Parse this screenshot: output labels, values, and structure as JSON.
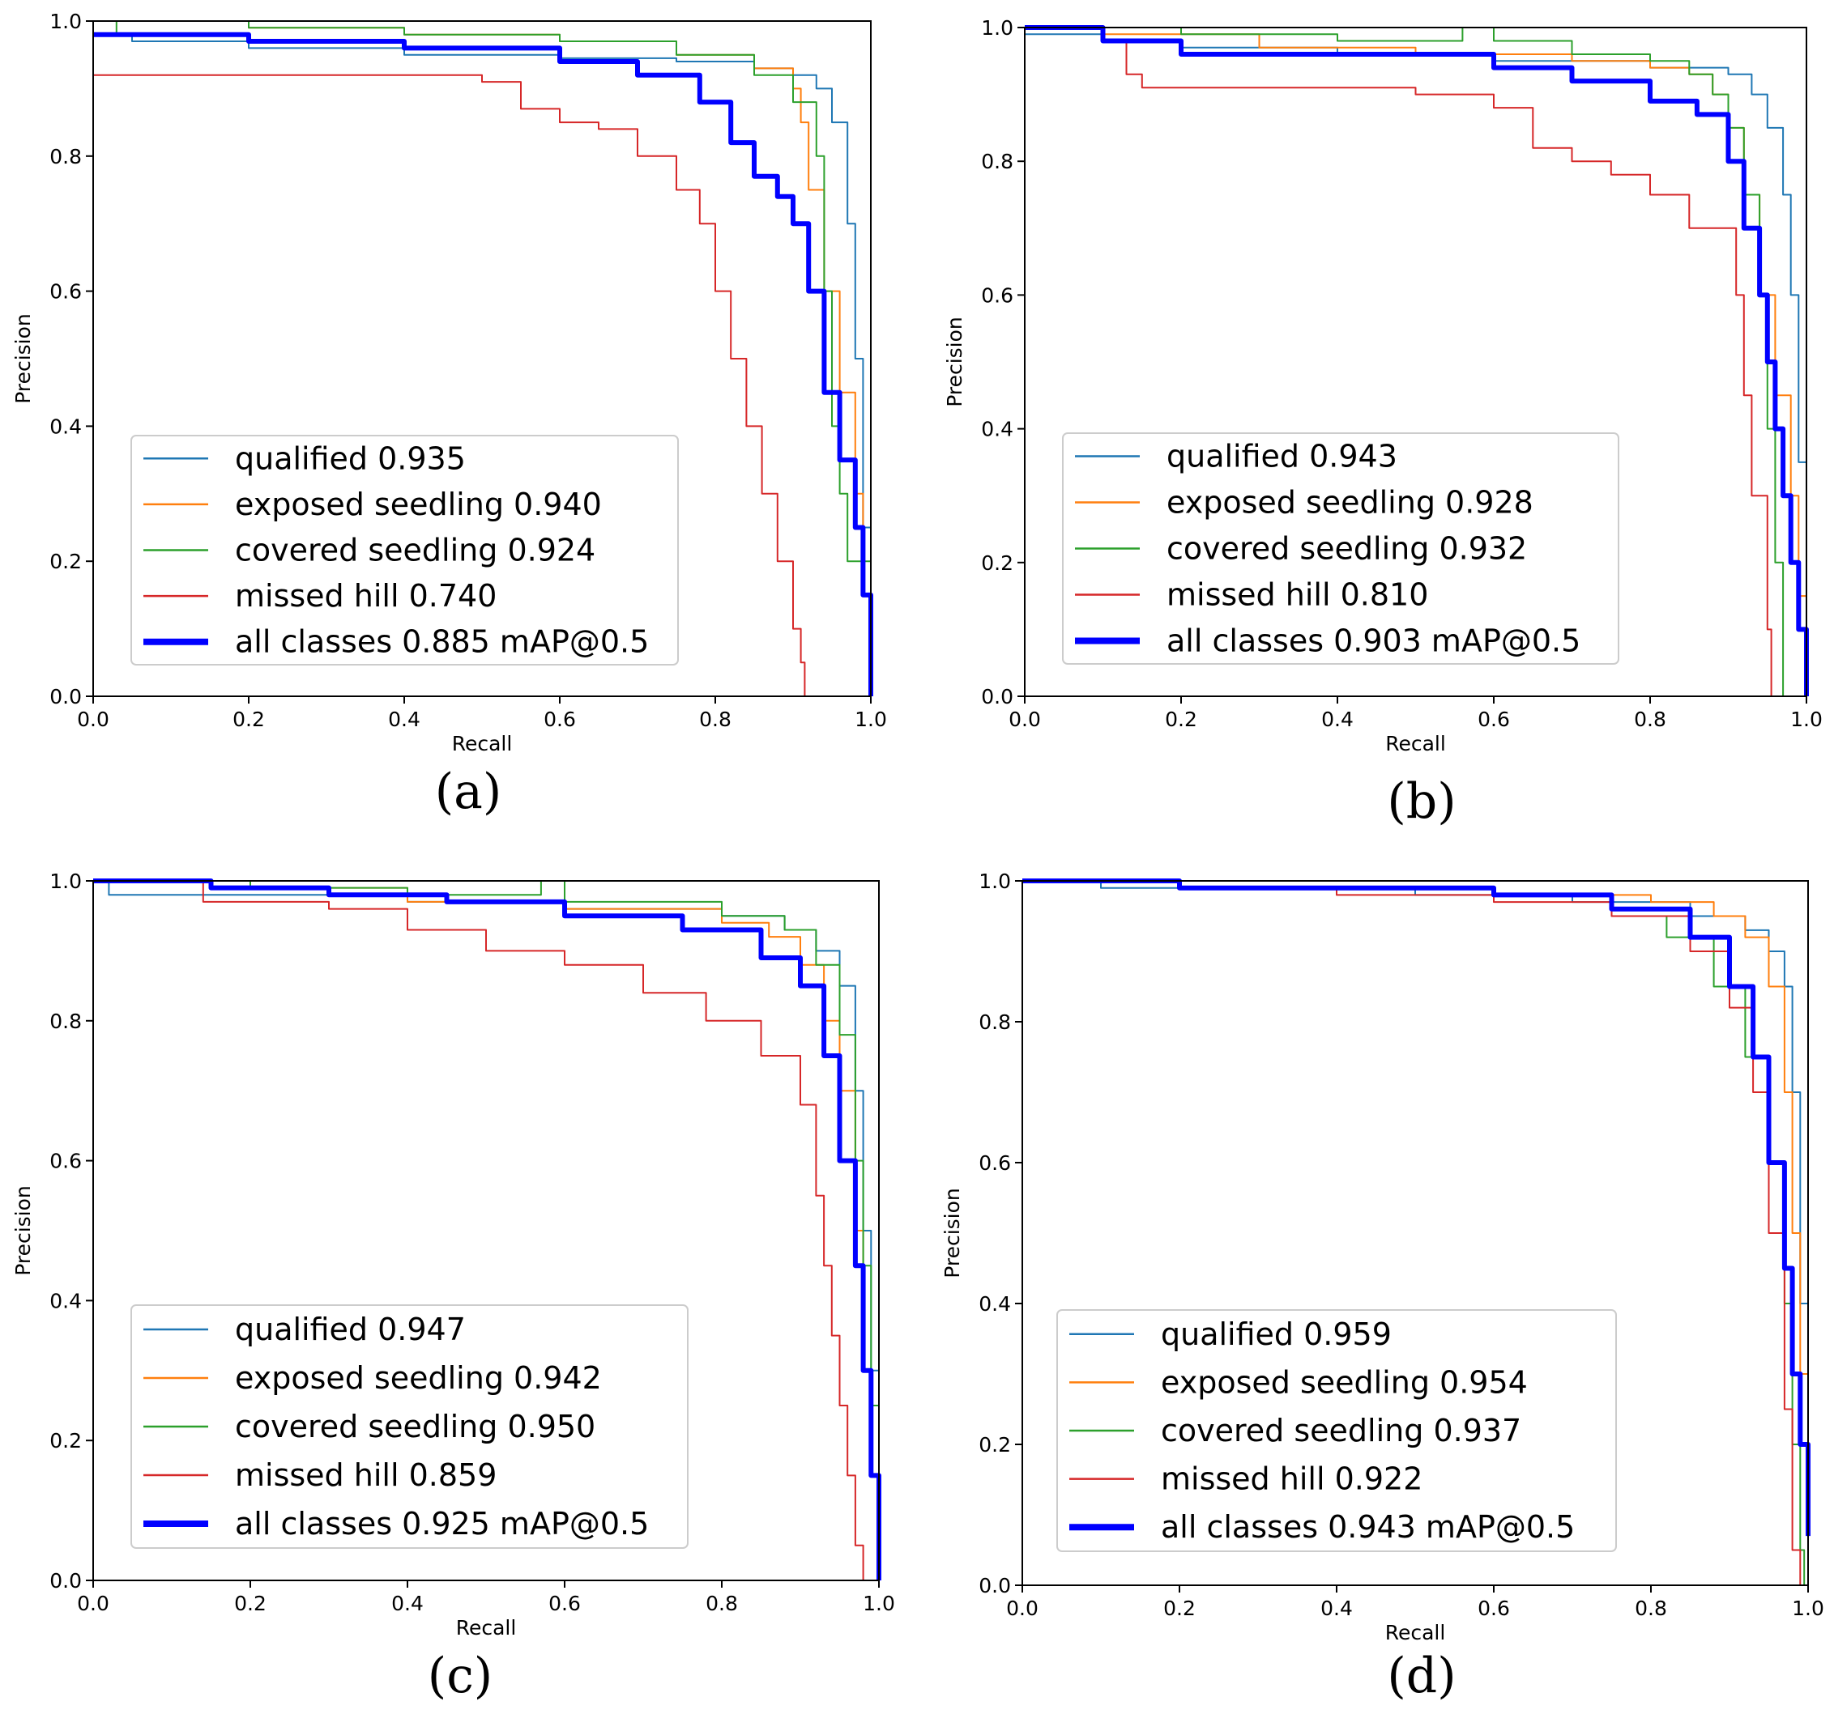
{
  "figure": {
    "colors": {
      "qualified": "#1f77b4",
      "exposed seedling": "#ff7f0e",
      "covered seedling": "#2ca02c",
      "missed hill": "#d62728",
      "all classes": "#0000ff"
    }
  },
  "chart_data": [
    {
      "panel": "(a)",
      "type": "line",
      "xlabel": "Recall",
      "ylabel": "Precision",
      "xlim": [
        0,
        1
      ],
      "ylim": [
        0,
        1
      ],
      "xticks": [
        "0.0",
        "0.2",
        "0.4",
        "0.6",
        "0.8",
        "1.0"
      ],
      "yticks": [
        "0.0",
        "0.2",
        "0.4",
        "0.6",
        "0.8",
        "1.0"
      ],
      "legend_position": "lower-center",
      "series": [
        {
          "name": "qualified",
          "label": "qualified 0.935",
          "x": [
            0,
            0.05,
            0.2,
            0.4,
            0.6,
            0.75,
            0.85,
            0.9,
            0.93,
            0.95,
            0.97,
            0.98,
            0.99,
            1.0
          ],
          "y": [
            0.98,
            0.97,
            0.96,
            0.95,
            0.945,
            0.94,
            0.93,
            0.92,
            0.9,
            0.85,
            0.7,
            0.5,
            0.25,
            0.0
          ]
        },
        {
          "name": "exposed seedling",
          "label": "exposed seedling 0.940",
          "x": [
            0,
            0.05,
            0.2,
            0.4,
            0.6,
            0.75,
            0.85,
            0.9,
            0.91,
            0.92,
            0.94,
            0.96,
            0.98,
            0.99,
            1.0
          ],
          "y": [
            1.0,
            1.0,
            0.99,
            0.98,
            0.97,
            0.95,
            0.93,
            0.9,
            0.85,
            0.75,
            0.6,
            0.45,
            0.3,
            0.15,
            0.0
          ]
        },
        {
          "name": "covered seedling",
          "label": "covered seedling 0.924",
          "x": [
            0,
            0.03,
            0.2,
            0.4,
            0.6,
            0.75,
            0.85,
            0.9,
            0.93,
            0.94,
            0.95,
            0.96,
            0.97,
            0.98,
            1.0
          ],
          "y": [
            0.98,
            1.0,
            0.99,
            0.98,
            0.97,
            0.95,
            0.92,
            0.88,
            0.8,
            0.6,
            0.4,
            0.3,
            0.2,
            0.2,
            0.0
          ]
        },
        {
          "name": "missed hill",
          "label": "missed hill 0.740",
          "x": [
            0,
            0.1,
            0.3,
            0.5,
            0.55,
            0.6,
            0.65,
            0.7,
            0.75,
            0.78,
            0.8,
            0.82,
            0.84,
            0.86,
            0.88,
            0.9,
            0.91,
            0.915
          ],
          "y": [
            0.92,
            0.92,
            0.92,
            0.91,
            0.87,
            0.85,
            0.84,
            0.8,
            0.75,
            0.7,
            0.6,
            0.5,
            0.4,
            0.3,
            0.2,
            0.1,
            0.05,
            0.0
          ]
        },
        {
          "name": "all classes",
          "label": "all classes 0.885 mAP@0.5",
          "x": [
            0,
            0.2,
            0.4,
            0.6,
            0.7,
            0.78,
            0.82,
            0.85,
            0.88,
            0.9,
            0.92,
            0.94,
            0.96,
            0.98,
            0.99,
            1.0
          ],
          "y": [
            0.98,
            0.97,
            0.96,
            0.94,
            0.92,
            0.88,
            0.82,
            0.77,
            0.74,
            0.7,
            0.6,
            0.45,
            0.35,
            0.25,
            0.15,
            0.0
          ]
        }
      ]
    },
    {
      "panel": "(b)",
      "type": "line",
      "xlabel": "Recall",
      "ylabel": "Precision",
      "xlim": [
        0,
        1
      ],
      "ylim": [
        0,
        1
      ],
      "xticks": [
        "0.0",
        "0.2",
        "0.4",
        "0.6",
        "0.8",
        "1.0"
      ],
      "yticks": [
        "0.0",
        "0.2",
        "0.4",
        "0.6",
        "0.8",
        "1.0"
      ],
      "legend_position": "lower-center",
      "series": [
        {
          "name": "qualified",
          "label": "qualified 0.943",
          "x": [
            0,
            0.1,
            0.2,
            0.4,
            0.6,
            0.8,
            0.9,
            0.93,
            0.95,
            0.97,
            0.98,
            0.99,
            1.0
          ],
          "y": [
            0.99,
            0.98,
            0.97,
            0.96,
            0.95,
            0.94,
            0.93,
            0.9,
            0.85,
            0.75,
            0.6,
            0.35,
            0.0
          ]
        },
        {
          "name": "exposed seedling",
          "label": "exposed seedling 0.928",
          "x": [
            0,
            0.1,
            0.3,
            0.5,
            0.7,
            0.8,
            0.85,
            0.88,
            0.9,
            0.92,
            0.94,
            0.96,
            0.98,
            0.99,
            1.0
          ],
          "y": [
            1.0,
            0.99,
            0.97,
            0.96,
            0.95,
            0.94,
            0.93,
            0.9,
            0.85,
            0.75,
            0.6,
            0.45,
            0.3,
            0.15,
            0.0
          ]
        },
        {
          "name": "covered seedling",
          "label": "covered seedling 0.932",
          "x": [
            0,
            0.2,
            0.4,
            0.56,
            0.6,
            0.7,
            0.8,
            0.85,
            0.88,
            0.9,
            0.92,
            0.94,
            0.95,
            0.96,
            0.97
          ],
          "y": [
            1.0,
            0.99,
            0.98,
            1.0,
            0.98,
            0.96,
            0.95,
            0.93,
            0.9,
            0.85,
            0.75,
            0.6,
            0.4,
            0.2,
            0.0
          ]
        },
        {
          "name": "missed hill",
          "label": "missed hill 0.810",
          "x": [
            0,
            0.1,
            0.13,
            0.15,
            0.3,
            0.5,
            0.6,
            0.65,
            0.7,
            0.75,
            0.8,
            0.85,
            0.9,
            0.91,
            0.92,
            0.93,
            0.95,
            0.955
          ],
          "y": [
            1.0,
            0.98,
            0.93,
            0.91,
            0.91,
            0.9,
            0.88,
            0.82,
            0.8,
            0.78,
            0.75,
            0.7,
            0.7,
            0.6,
            0.45,
            0.3,
            0.1,
            0.0
          ]
        },
        {
          "name": "all classes",
          "label": "all classes 0.903 mAP@0.5",
          "x": [
            0,
            0.1,
            0.2,
            0.4,
            0.6,
            0.7,
            0.8,
            0.86,
            0.9,
            0.92,
            0.94,
            0.95,
            0.96,
            0.97,
            0.98,
            0.99,
            1.0
          ],
          "y": [
            1.0,
            0.98,
            0.96,
            0.96,
            0.94,
            0.92,
            0.89,
            0.87,
            0.8,
            0.7,
            0.6,
            0.5,
            0.4,
            0.3,
            0.2,
            0.1,
            0.0
          ]
        }
      ]
    },
    {
      "panel": "(c)",
      "type": "line",
      "xlabel": "Recall",
      "ylabel": "Precision",
      "xlim": [
        0,
        1
      ],
      "ylim": [
        0,
        1
      ],
      "xticks": [
        "0.0",
        "0.2",
        "0.4",
        "0.6",
        "0.8",
        "1.0"
      ],
      "yticks": [
        "0.0",
        "0.2",
        "0.4",
        "0.6",
        "0.8",
        "1.0"
      ],
      "legend_position": "lower-center",
      "series": [
        {
          "name": "qualified",
          "label": "qualified 0.947",
          "x": [
            0,
            0.02,
            0.2,
            0.4,
            0.6,
            0.8,
            0.88,
            0.92,
            0.95,
            0.97,
            0.98,
            0.99,
            1.0
          ],
          "y": [
            1.0,
            0.98,
            0.98,
            0.97,
            0.96,
            0.95,
            0.93,
            0.9,
            0.85,
            0.7,
            0.5,
            0.3,
            0.0
          ]
        },
        {
          "name": "exposed seedling",
          "label": "exposed seedling 0.942",
          "x": [
            0,
            0.2,
            0.4,
            0.6,
            0.8,
            0.86,
            0.9,
            0.93,
            0.95,
            0.97,
            0.98,
            0.99,
            1.0
          ],
          "y": [
            1.0,
            0.99,
            0.97,
            0.96,
            0.94,
            0.92,
            0.88,
            0.8,
            0.7,
            0.5,
            0.3,
            0.15,
            0.0
          ]
        },
        {
          "name": "covered seedling",
          "label": "covered seedling 0.950",
          "x": [
            0,
            0.2,
            0.4,
            0.57,
            0.6,
            0.8,
            0.88,
            0.92,
            0.95,
            0.97,
            0.98,
            0.99,
            1.0
          ],
          "y": [
            1.0,
            0.99,
            0.98,
            1.0,
            0.97,
            0.95,
            0.93,
            0.88,
            0.78,
            0.6,
            0.45,
            0.25,
            0.0
          ]
        },
        {
          "name": "missed hill",
          "label": "missed hill 0.859",
          "x": [
            0,
            0.14,
            0.3,
            0.4,
            0.5,
            0.6,
            0.7,
            0.78,
            0.85,
            0.9,
            0.92,
            0.93,
            0.94,
            0.95,
            0.96,
            0.97,
            0.98
          ],
          "y": [
            1.0,
            0.97,
            0.96,
            0.93,
            0.9,
            0.88,
            0.84,
            0.8,
            0.75,
            0.68,
            0.55,
            0.45,
            0.35,
            0.25,
            0.15,
            0.05,
            0.0
          ]
        },
        {
          "name": "all classes",
          "label": "all classes 0.925 mAP@0.5",
          "x": [
            0,
            0.15,
            0.3,
            0.45,
            0.6,
            0.75,
            0.85,
            0.9,
            0.93,
            0.95,
            0.97,
            0.98,
            0.99,
            1.0
          ],
          "y": [
            1.0,
            0.99,
            0.98,
            0.97,
            0.95,
            0.93,
            0.89,
            0.85,
            0.75,
            0.6,
            0.45,
            0.3,
            0.15,
            0.0
          ]
        }
      ]
    },
    {
      "panel": "(d)",
      "type": "line",
      "xlabel": "Recall",
      "ylabel": "Precision",
      "xlim": [
        0,
        1
      ],
      "ylim": [
        0,
        1
      ],
      "xticks": [
        "0.0",
        "0.2",
        "0.4",
        "0.6",
        "0.8",
        "1.0"
      ],
      "yticks": [
        "0.0",
        "0.2",
        "0.4",
        "0.6",
        "0.8",
        "1.0"
      ],
      "legend_position": "lower-center",
      "series": [
        {
          "name": "qualified",
          "label": "qualified 0.959",
          "x": [
            0,
            0.1,
            0.3,
            0.5,
            0.7,
            0.85,
            0.92,
            0.95,
            0.97,
            0.98,
            0.99,
            1.0
          ],
          "y": [
            1.0,
            0.99,
            0.99,
            0.98,
            0.97,
            0.95,
            0.93,
            0.9,
            0.85,
            0.7,
            0.4,
            0.1
          ]
        },
        {
          "name": "exposed seedling",
          "label": "exposed seedling 0.954",
          "x": [
            0,
            0.2,
            0.4,
            0.6,
            0.8,
            0.88,
            0.92,
            0.95,
            0.97,
            0.98,
            0.99,
            1.0
          ],
          "y": [
            1.0,
            0.99,
            0.99,
            0.98,
            0.97,
            0.95,
            0.92,
            0.85,
            0.7,
            0.5,
            0.3,
            0.1
          ]
        },
        {
          "name": "covered seedling",
          "label": "covered seedling 0.937",
          "x": [
            0,
            0.2,
            0.4,
            0.6,
            0.75,
            0.82,
            0.88,
            0.92,
            0.95,
            0.97,
            0.98,
            0.99,
            0.995
          ],
          "y": [
            1.0,
            0.99,
            0.99,
            0.98,
            0.95,
            0.92,
            0.85,
            0.75,
            0.6,
            0.4,
            0.2,
            0.05,
            0.0
          ]
        },
        {
          "name": "missed hill",
          "label": "missed hill 0.922",
          "x": [
            0,
            0.2,
            0.4,
            0.6,
            0.75,
            0.85,
            0.9,
            0.93,
            0.95,
            0.97,
            0.98,
            0.99
          ],
          "y": [
            1.0,
            0.99,
            0.98,
            0.97,
            0.95,
            0.9,
            0.82,
            0.7,
            0.5,
            0.25,
            0.05,
            0.0
          ]
        },
        {
          "name": "all classes",
          "label": "all classes 0.943 mAP@0.5",
          "x": [
            0,
            0.2,
            0.4,
            0.6,
            0.75,
            0.85,
            0.9,
            0.93,
            0.95,
            0.97,
            0.98,
            0.99,
            1.0
          ],
          "y": [
            1.0,
            0.99,
            0.99,
            0.98,
            0.96,
            0.92,
            0.85,
            0.75,
            0.6,
            0.45,
            0.3,
            0.2,
            0.07
          ]
        }
      ]
    }
  ]
}
